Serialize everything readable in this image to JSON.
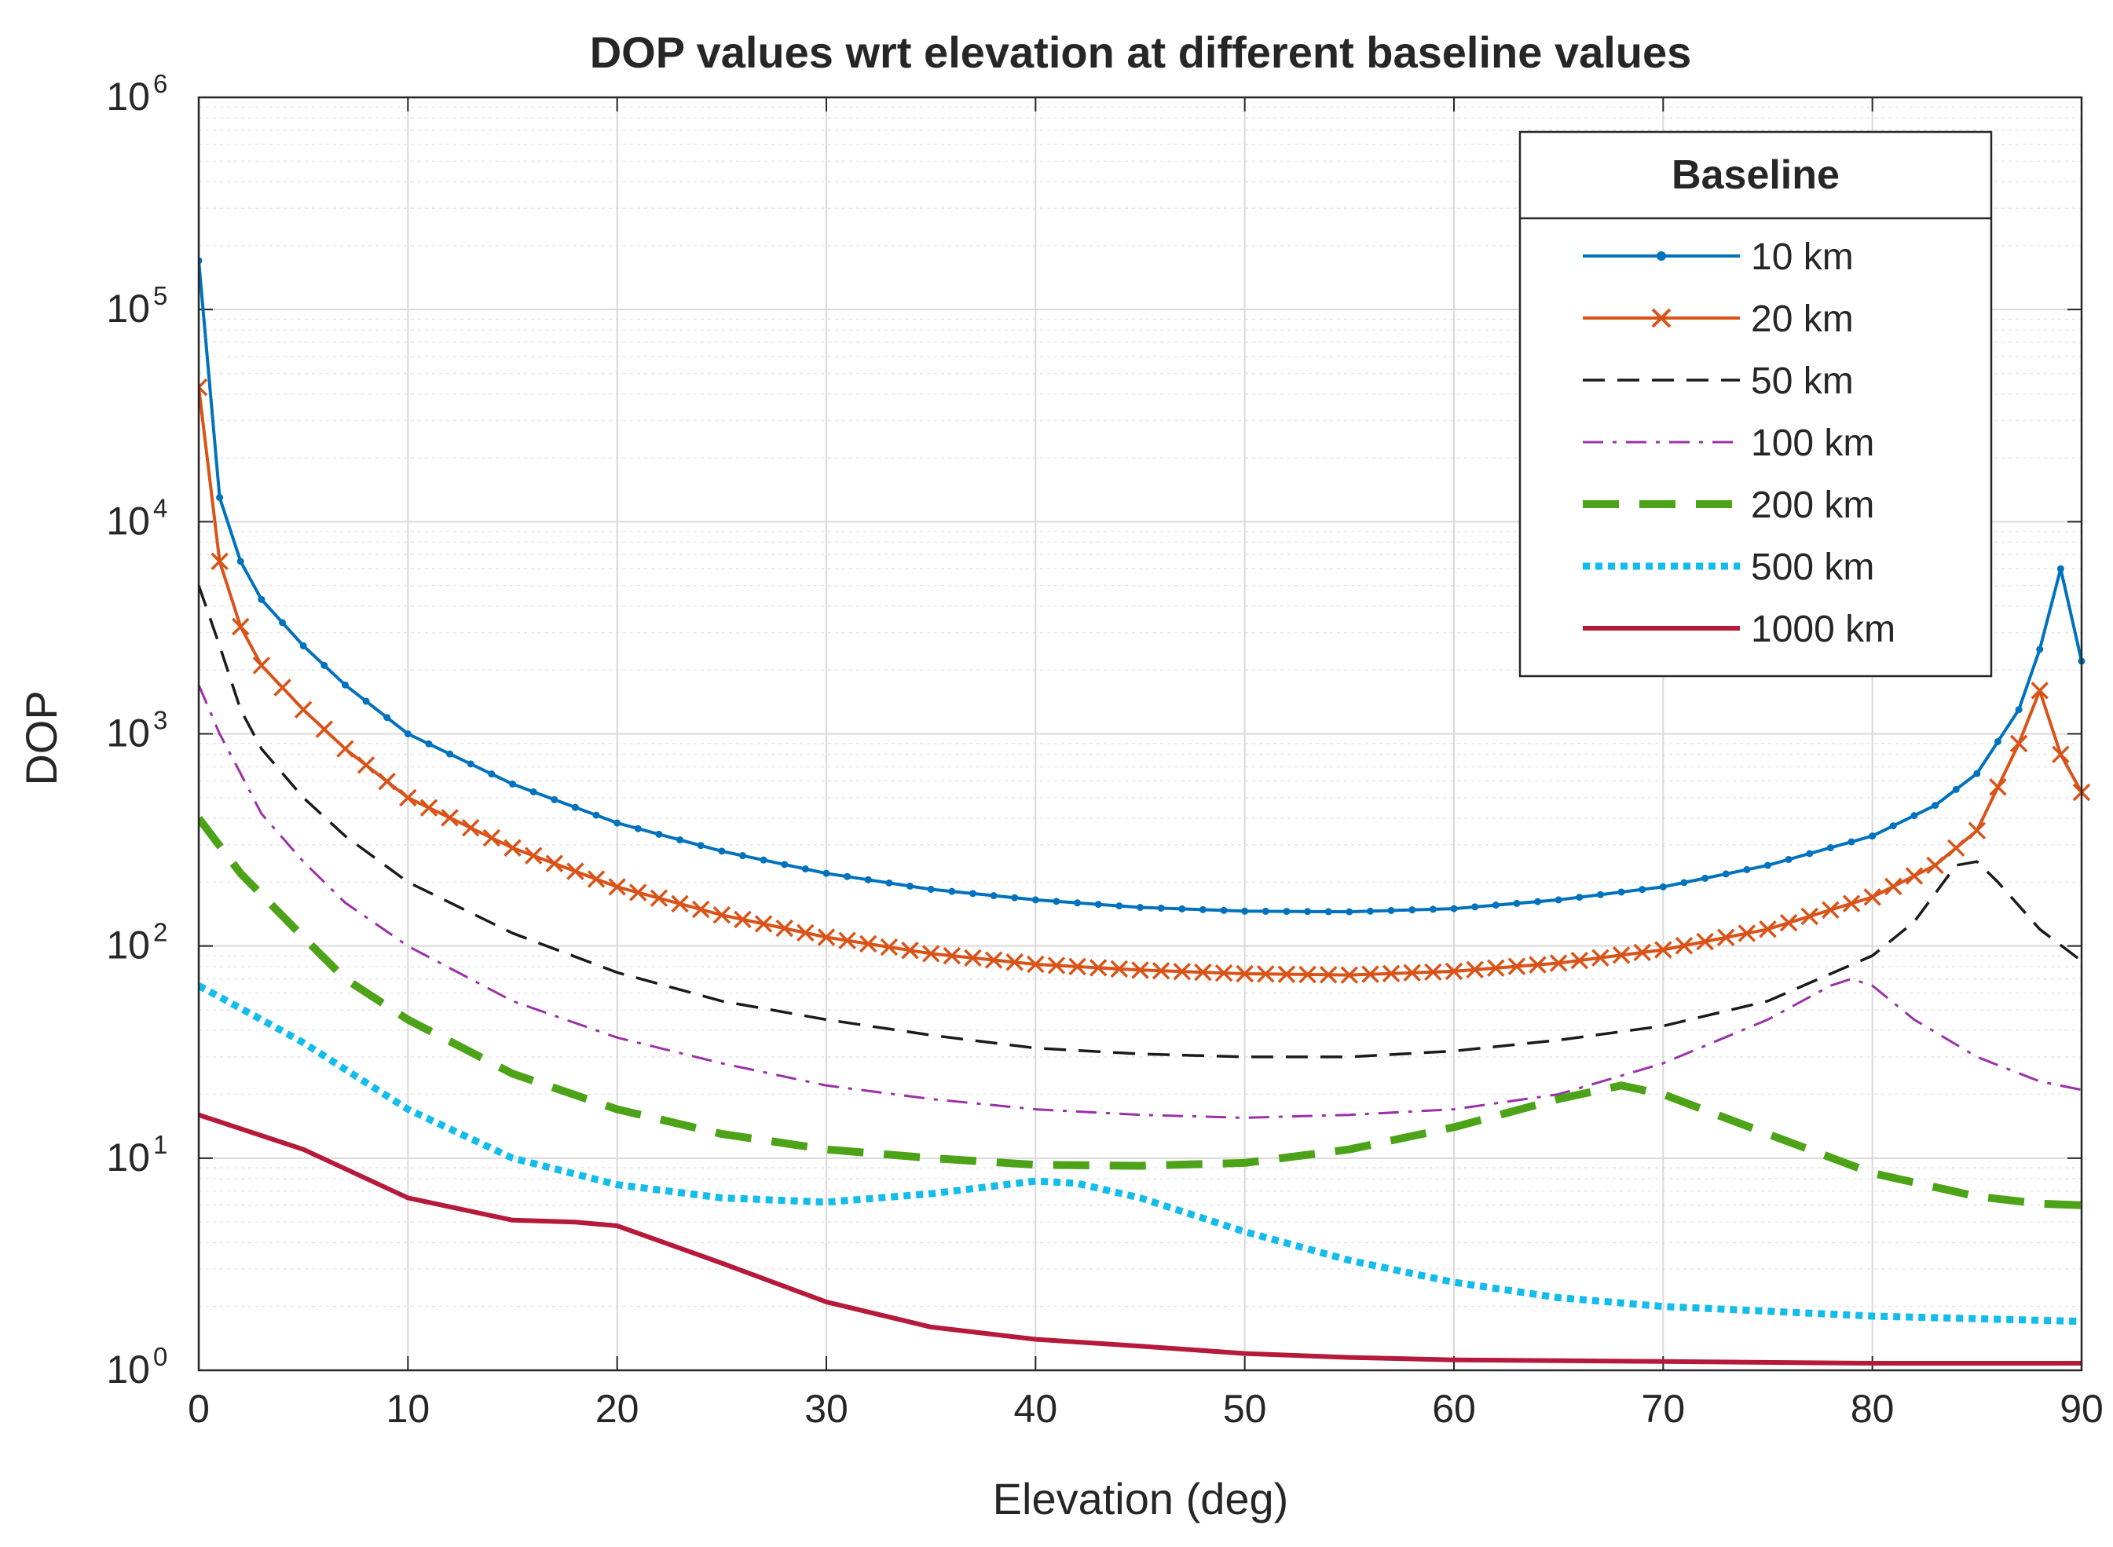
{
  "chart_data": {
    "type": "line",
    "title": "DOP values wrt elevation at different baseline values",
    "xlabel": "Elevation (deg)",
    "ylabel": "DOP",
    "xlim": [
      0,
      90
    ],
    "ylim": [
      1,
      1000000
    ],
    "yscale": "log",
    "xticks": [
      0,
      10,
      20,
      30,
      40,
      50,
      60,
      70,
      80,
      90
    ],
    "yticks": [
      {
        "base": "10",
        "exp": "0",
        "value": 1
      },
      {
        "base": "10",
        "exp": "1",
        "value": 10
      },
      {
        "base": "10",
        "exp": "2",
        "value": 100
      },
      {
        "base": "10",
        "exp": "3",
        "value": 1000
      },
      {
        "base": "10",
        "exp": "4",
        "value": 10000
      },
      {
        "base": "10",
        "exp": "5",
        "value": 100000
      },
      {
        "base": "10",
        "exp": "6",
        "value": 1000000
      }
    ],
    "grid": true,
    "legend": {
      "title": "Baseline",
      "position": "top-right"
    },
    "series": [
      {
        "name": "10 km",
        "color": "#0072BD",
        "style": "solid",
        "marker": "dot",
        "points": [
          [
            0,
            170000
          ],
          [
            1,
            13000
          ],
          [
            2,
            6500
          ],
          [
            3,
            4300
          ],
          [
            5,
            2600
          ],
          [
            7,
            1700
          ],
          [
            10,
            1000
          ],
          [
            15,
            580
          ],
          [
            20,
            380
          ],
          [
            25,
            280
          ],
          [
            30,
            220
          ],
          [
            35,
            185
          ],
          [
            40,
            165
          ],
          [
            45,
            152
          ],
          [
            50,
            146
          ],
          [
            55,
            145
          ],
          [
            60,
            150
          ],
          [
            65,
            165
          ],
          [
            70,
            190
          ],
          [
            75,
            240
          ],
          [
            80,
            330
          ],
          [
            83,
            460
          ],
          [
            85,
            650
          ],
          [
            87,
            1300
          ],
          [
            88,
            2500
          ],
          [
            89,
            6000
          ],
          [
            90,
            2200
          ]
        ]
      },
      {
        "name": "20 km",
        "color": "#D95319",
        "style": "solid",
        "marker": "x",
        "points": [
          [
            0,
            43000
          ],
          [
            1,
            6500
          ],
          [
            2,
            3200
          ],
          [
            3,
            2100
          ],
          [
            5,
            1300
          ],
          [
            7,
            850
          ],
          [
            10,
            500
          ],
          [
            15,
            290
          ],
          [
            20,
            190
          ],
          [
            25,
            140
          ],
          [
            30,
            110
          ],
          [
            35,
            92
          ],
          [
            40,
            82
          ],
          [
            45,
            77
          ],
          [
            50,
            74
          ],
          [
            55,
            73
          ],
          [
            60,
            76
          ],
          [
            65,
            83
          ],
          [
            70,
            96
          ],
          [
            75,
            120
          ],
          [
            80,
            170
          ],
          [
            83,
            240
          ],
          [
            85,
            350
          ],
          [
            87,
            900
          ],
          [
            88,
            1600
          ],
          [
            89,
            800
          ],
          [
            90,
            530
          ]
        ]
      },
      {
        "name": "50 km",
        "color": "#1a1a1a",
        "style": "dash",
        "marker": "none",
        "points": [
          [
            0,
            5000
          ],
          [
            1,
            2600
          ],
          [
            2,
            1300
          ],
          [
            3,
            850
          ],
          [
            5,
            500
          ],
          [
            7,
            330
          ],
          [
            10,
            200
          ],
          [
            15,
            115
          ],
          [
            20,
            75
          ],
          [
            25,
            55
          ],
          [
            30,
            45
          ],
          [
            35,
            38
          ],
          [
            40,
            33
          ],
          [
            45,
            31
          ],
          [
            50,
            30
          ],
          [
            55,
            30
          ],
          [
            60,
            32
          ],
          [
            65,
            36
          ],
          [
            70,
            42
          ],
          [
            75,
            55
          ],
          [
            80,
            90
          ],
          [
            82,
            130
          ],
          [
            84,
            240
          ],
          [
            85,
            250
          ],
          [
            86,
            200
          ],
          [
            88,
            120
          ],
          [
            90,
            85
          ]
        ]
      },
      {
        "name": "100 km",
        "color": "#9B30A8",
        "style": "dashdot",
        "marker": "none",
        "points": [
          [
            0,
            1700
          ],
          [
            1,
            1000
          ],
          [
            2,
            650
          ],
          [
            3,
            420
          ],
          [
            5,
            250
          ],
          [
            7,
            160
          ],
          [
            10,
            100
          ],
          [
            15,
            55
          ],
          [
            20,
            37
          ],
          [
            25,
            28
          ],
          [
            30,
            22
          ],
          [
            35,
            19
          ],
          [
            40,
            17
          ],
          [
            45,
            16
          ],
          [
            50,
            15.5
          ],
          [
            55,
            16
          ],
          [
            60,
            17
          ],
          [
            65,
            20
          ],
          [
            70,
            28
          ],
          [
            75,
            45
          ],
          [
            78,
            65
          ],
          [
            79,
            70
          ],
          [
            80,
            65
          ],
          [
            82,
            45
          ],
          [
            85,
            30
          ],
          [
            88,
            23
          ],
          [
            90,
            21
          ]
        ]
      },
      {
        "name": "200 km",
        "color": "#4DA318",
        "style": "longdash",
        "marker": "none",
        "points": [
          [
            0,
            400
          ],
          [
            2,
            220
          ],
          [
            5,
            110
          ],
          [
            7,
            70
          ],
          [
            10,
            45
          ],
          [
            15,
            25
          ],
          [
            20,
            17
          ],
          [
            25,
            13
          ],
          [
            30,
            11
          ],
          [
            35,
            10
          ],
          [
            40,
            9.3
          ],
          [
            45,
            9.2
          ],
          [
            50,
            9.5
          ],
          [
            55,
            11
          ],
          [
            60,
            14
          ],
          [
            65,
            19
          ],
          [
            68,
            22
          ],
          [
            70,
            20
          ],
          [
            75,
            13
          ],
          [
            80,
            8.5
          ],
          [
            85,
            6.6
          ],
          [
            88,
            6.1
          ],
          [
            90,
            6
          ]
        ]
      },
      {
        "name": "500 km",
        "color": "#12BDEB",
        "style": "dot",
        "marker": "none",
        "points": [
          [
            0,
            65
          ],
          [
            3,
            45
          ],
          [
            5,
            35
          ],
          [
            10,
            17
          ],
          [
            15,
            10
          ],
          [
            20,
            7.5
          ],
          [
            25,
            6.5
          ],
          [
            30,
            6.2
          ],
          [
            35,
            6.8
          ],
          [
            40,
            7.8
          ],
          [
            42,
            7.6
          ],
          [
            45,
            6.5
          ],
          [
            50,
            4.5
          ],
          [
            55,
            3.3
          ],
          [
            60,
            2.6
          ],
          [
            65,
            2.2
          ],
          [
            70,
            2
          ],
          [
            75,
            1.9
          ],
          [
            80,
            1.8
          ],
          [
            85,
            1.75
          ],
          [
            90,
            1.7
          ]
        ]
      },
      {
        "name": "1000 km",
        "color": "#B51A3A",
        "style": "solid",
        "marker": "none",
        "points": [
          [
            0,
            16
          ],
          [
            5,
            11
          ],
          [
            10,
            6.5
          ],
          [
            15,
            5.1
          ],
          [
            18,
            5
          ],
          [
            20,
            4.8
          ],
          [
            25,
            3.2
          ],
          [
            30,
            2.1
          ],
          [
            35,
            1.6
          ],
          [
            40,
            1.4
          ],
          [
            45,
            1.3
          ],
          [
            50,
            1.2
          ],
          [
            55,
            1.15
          ],
          [
            60,
            1.12
          ],
          [
            70,
            1.1
          ],
          [
            80,
            1.08
          ],
          [
            90,
            1.08
          ]
        ]
      }
    ]
  }
}
